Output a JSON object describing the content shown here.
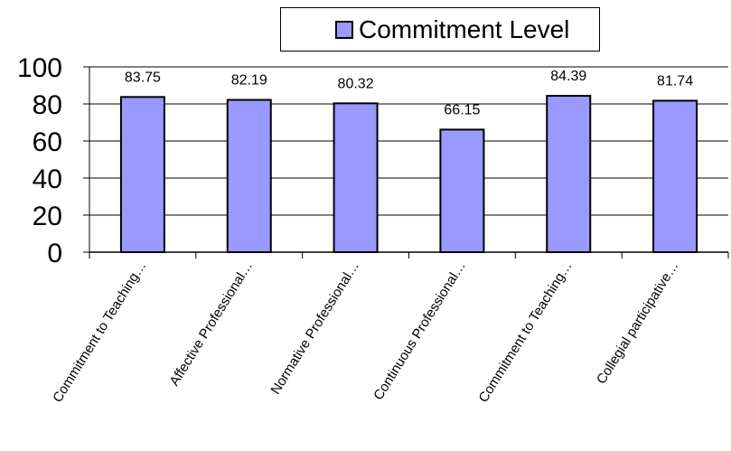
{
  "chart_data": {
    "type": "bar",
    "title": "",
    "xlabel": "",
    "ylabel": "",
    "categories": [
      "Commitment to Teaching…",
      "Affective Professional…",
      "Normative Professional…",
      "Continuous Professional…",
      "Commitment to Teaching…",
      "Collegial participative…"
    ],
    "series": [
      {
        "name": "Commitment Level",
        "values": [
          83.75,
          82.19,
          80.32,
          66.15,
          84.39,
          81.74
        ]
      }
    ],
    "data_labels": [
      "83.75",
      "82.19",
      "80.32",
      "66.15",
      "84.39",
      "81.74"
    ],
    "ylim": [
      0,
      100
    ],
    "yticks": [
      0,
      20,
      40,
      60,
      80,
      100
    ],
    "grid": true,
    "legend": "top-center",
    "colors": {
      "bar": "#9999ff",
      "bar_border": "#000000",
      "grid": "#000000"
    }
  }
}
